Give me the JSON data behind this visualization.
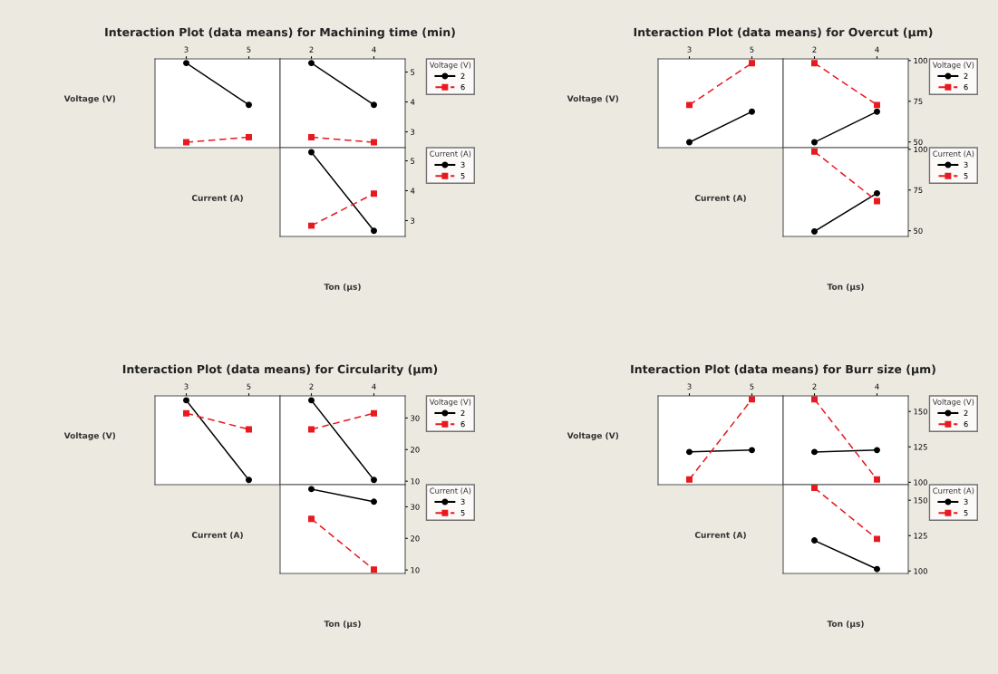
{
  "chart_data": [
    {
      "type": "line",
      "title": "Interaction Plot (data means) for Machining time (min)",
      "ylabel": "Voltage (V)",
      "xlabel": "Current (A)",
      "x": [
        3,
        5
      ],
      "xlim": [
        2,
        6
      ],
      "xticks": [
        3,
        5
      ],
      "ylim": [
        2.47,
        5.44
      ],
      "tick_labels": "x",
      "series": [
        {
          "color": "#000000",
          "values": [
            5.3,
            3.9
          ],
          "marker": "circle",
          "line_style": "solid"
        },
        {
          "color": "#e8191f",
          "values": [
            2.65,
            2.82
          ],
          "marker": "square",
          "line_style": "dashed"
        }
      ]
    },
    {
      "type": "line",
      "x": [
        2,
        4
      ],
      "xlim": [
        1,
        5
      ],
      "xticks": [
        2,
        4
      ],
      "ylim": [
        2.47,
        5.44
      ],
      "yticks": [
        3,
        4,
        5
      ],
      "legend": "right",
      "legend_title": "Voltage (V)",
      "series": [
        {
          "name": "2",
          "color": "#000000",
          "values": [
            5.3,
            3.9
          ],
          "marker": "circle",
          "line_style": "solid"
        },
        {
          "name": "6",
          "color": "#e8191f",
          "values": [
            2.82,
            2.65
          ],
          "marker": "square",
          "line_style": "dashed"
        }
      ]
    },
    {
      "type": "line",
      "xlabel": "Ton (μs)",
      "x": [
        2,
        4
      ],
      "xlim": [
        1,
        5
      ],
      "ylim": [
        2.47,
        5.44
      ],
      "yticks": [
        3,
        4,
        5
      ],
      "tick_labels": "y",
      "legend": "right",
      "legend_title": "Current (A)",
      "series": [
        {
          "name": "3",
          "color": "#000000",
          "values": [
            5.29,
            2.66
          ],
          "marker": "circle",
          "line_style": "solid"
        },
        {
          "name": "5",
          "color": "#e8191f",
          "values": [
            2.83,
            3.9
          ],
          "marker": "square",
          "line_style": "dashed"
        }
      ]
    },
    {
      "type": "line",
      "title": "Interaction Plot (data means) for Overcut (μm)",
      "ylabel": "Voltage (V)",
      "xlabel": "Current (A)",
      "x": [
        3,
        5
      ],
      "xlim": [
        2,
        6
      ],
      "xticks": [
        3,
        5
      ],
      "ylim": [
        46.5,
        101
      ],
      "tick_labels": "x",
      "series": [
        {
          "color": "#000000",
          "values": [
            49.8,
            68.6
          ],
          "marker": "circle",
          "line_style": "solid"
        },
        {
          "color": "#e8191f",
          "values": [
            72.7,
            98.4
          ],
          "marker": "square",
          "line_style": "dashed"
        }
      ]
    },
    {
      "type": "line",
      "x": [
        2,
        4
      ],
      "xlim": [
        1,
        5
      ],
      "xticks": [
        2,
        4
      ],
      "ylim": [
        46.5,
        101
      ],
      "yticks": [
        50,
        75,
        100
      ],
      "legend": "right",
      "legend_title": "Voltage (V)",
      "series": [
        {
          "name": "2",
          "color": "#000000",
          "values": [
            49.8,
            68.6
          ],
          "marker": "circle",
          "line_style": "solid"
        },
        {
          "name": "6",
          "color": "#e8191f",
          "values": [
            98.4,
            72.7
          ],
          "marker": "square",
          "line_style": "dashed"
        }
      ]
    },
    {
      "type": "line",
      "xlabel": "Ton (μs)",
      "x": [
        2,
        4
      ],
      "xlim": [
        1,
        5
      ],
      "ylim": [
        46.5,
        101
      ],
      "yticks": [
        50,
        75,
        100
      ],
      "tick_labels": "y",
      "legend": "right",
      "legend_title": "Current (A)",
      "series": [
        {
          "name": "3",
          "color": "#000000",
          "values": [
            49.6,
            73.0
          ],
          "marker": "circle",
          "line_style": "solid"
        },
        {
          "name": "5",
          "color": "#e8191f",
          "values": [
            98.6,
            68.2
          ],
          "marker": "square",
          "line_style": "dashed"
        }
      ]
    },
    {
      "type": "line",
      "title": "Interaction Plot (data means) for Circularity (μm)",
      "ylabel": "Voltage (V)",
      "xlabel": "Current (A)",
      "x": [
        3,
        5
      ],
      "xlim": [
        2,
        6
      ],
      "xticks": [
        3,
        5
      ],
      "ylim": [
        8.9,
        37
      ],
      "tick_labels": "x",
      "series": [
        {
          "color": "#000000",
          "values": [
            35.6,
            10.4
          ],
          "marker": "circle",
          "line_style": "solid"
        },
        {
          "color": "#e8191f",
          "values": [
            31.5,
            26.4
          ],
          "marker": "square",
          "line_style": "dashed"
        }
      ]
    },
    {
      "type": "line",
      "x": [
        2,
        4
      ],
      "xlim": [
        1,
        5
      ],
      "xticks": [
        2,
        4
      ],
      "ylim": [
        8.9,
        37
      ],
      "yticks": [
        10,
        20,
        30
      ],
      "legend": "right",
      "legend_title": "Voltage (V)",
      "series": [
        {
          "name": "2",
          "color": "#000000",
          "values": [
            35.6,
            10.4
          ],
          "marker": "circle",
          "line_style": "solid"
        },
        {
          "name": "6",
          "color": "#e8191f",
          "values": [
            26.4,
            31.5
          ],
          "marker": "square",
          "line_style": "dashed"
        }
      ]
    },
    {
      "type": "line",
      "xlabel": "Ton (μs)",
      "x": [
        2,
        4
      ],
      "xlim": [
        1,
        5
      ],
      "ylim": [
        8.9,
        37
      ],
      "yticks": [
        10,
        20,
        30
      ],
      "tick_labels": "y",
      "legend": "right",
      "legend_title": "Current (A)",
      "series": [
        {
          "name": "3",
          "color": "#000000",
          "values": [
            35.6,
            31.6
          ],
          "marker": "circle",
          "line_style": "solid"
        },
        {
          "name": "5",
          "color": "#e8191f",
          "values": [
            26.2,
            10.1
          ],
          "marker": "square",
          "line_style": "dashed"
        }
      ]
    },
    {
      "type": "line",
      "title": "Interaction Plot (data means) for Burr size (μm)",
      "ylabel": "Voltage (V)",
      "xlabel": "Current (A)",
      "x": [
        3,
        5
      ],
      "xlim": [
        2,
        6
      ],
      "xticks": [
        3,
        5
      ],
      "ylim": [
        98.3,
        161
      ],
      "tick_labels": "x",
      "series": [
        {
          "color": "#000000",
          "values": [
            121.4,
            122.7
          ],
          "marker": "circle",
          "line_style": "solid"
        },
        {
          "color": "#e8191f",
          "values": [
            102.0,
            158.6
          ],
          "marker": "square",
          "line_style": "dashed"
        }
      ]
    },
    {
      "type": "line",
      "x": [
        2,
        4
      ],
      "xlim": [
        1,
        5
      ],
      "xticks": [
        2,
        4
      ],
      "ylim": [
        98.3,
        161
      ],
      "yticks": [
        100,
        125,
        150
      ],
      "legend": "right",
      "legend_title": "Voltage (V)",
      "series": [
        {
          "name": "2",
          "color": "#000000",
          "values": [
            121.4,
            122.7
          ],
          "marker": "circle",
          "line_style": "solid"
        },
        {
          "name": "6",
          "color": "#e8191f",
          "values": [
            158.6,
            102.0
          ],
          "marker": "square",
          "line_style": "dashed"
        }
      ]
    },
    {
      "type": "line",
      "xlabel": "Ton (μs)",
      "x": [
        2,
        4
      ],
      "xlim": [
        1,
        5
      ],
      "ylim": [
        98.3,
        161
      ],
      "yticks": [
        100,
        125,
        150
      ],
      "tick_labels": "y",
      "legend": "right",
      "legend_title": "Current (A)",
      "series": [
        {
          "name": "3",
          "color": "#000000",
          "values": [
            121.6,
            101.4
          ],
          "marker": "circle",
          "line_style": "solid"
        },
        {
          "name": "5",
          "color": "#e8191f",
          "values": [
            158.7,
            122.7
          ],
          "marker": "square",
          "line_style": "dashed"
        }
      ]
    }
  ]
}
